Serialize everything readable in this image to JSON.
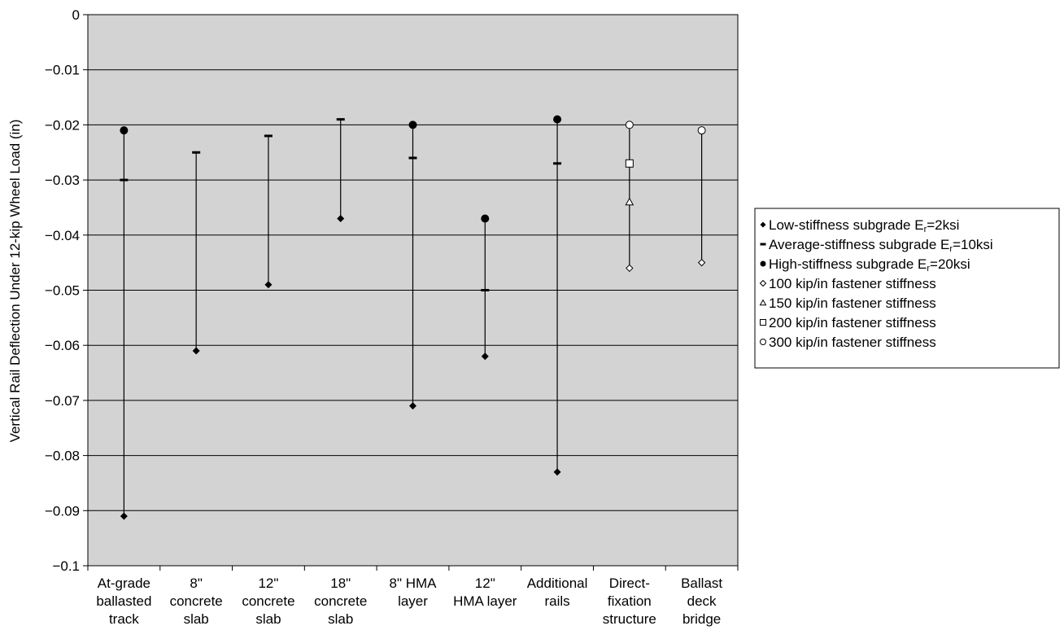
{
  "chart_data": {
    "type": "scatter",
    "title": "",
    "xlabel": "",
    "ylabel": "Vertical Rail Deflection Under 12-kip Wheel Load (in)",
    "ylim": [
      -0.1,
      0
    ],
    "yticks": [
      0,
      -0.01,
      -0.02,
      -0.03,
      -0.04,
      -0.05,
      -0.06,
      -0.07,
      -0.08,
      -0.09,
      -0.1
    ],
    "ytick_labels": [
      "0",
      "−0.01",
      "−0.02",
      "−0.03",
      "−0.04",
      "−0.05",
      "−0.06",
      "−0.07",
      "−0.08",
      "−0.09",
      "−0.1"
    ],
    "grid": true,
    "plot_background": "#d3d3d3",
    "legend_position": "right",
    "categories": [
      [
        "At-grade",
        "ballasted",
        "track"
      ],
      [
        "8\"",
        "concrete",
        "slab"
      ],
      [
        "12\"",
        "concrete",
        "slab"
      ],
      [
        "18\"",
        "concrete",
        "slab"
      ],
      [
        "8\" HMA",
        "layer"
      ],
      [
        "12\"",
        "HMA layer"
      ],
      [
        "Additional",
        "rails"
      ],
      [
        "Direct-",
        "fixation",
        "structure"
      ],
      [
        "Ballast",
        "deck",
        "bridge"
      ]
    ],
    "ranges": [
      {
        "low": -0.091,
        "high": -0.021
      },
      {
        "low": -0.061,
        "high": -0.025
      },
      {
        "low": -0.049,
        "high": -0.022
      },
      {
        "low": -0.037,
        "high": -0.019
      },
      {
        "low": -0.071,
        "high": -0.02
      },
      {
        "low": -0.062,
        "high": -0.037
      },
      {
        "low": -0.083,
        "high": -0.019
      },
      {
        "low": -0.046,
        "high": -0.02
      },
      {
        "low": -0.045,
        "high": -0.021
      }
    ],
    "series": [
      {
        "name": "Low-stiffness subgrade E",
        "sub": "r",
        "suffix": "=2ksi",
        "marker": "diamond-filled",
        "values": [
          -0.091,
          -0.061,
          -0.049,
          -0.037,
          -0.071,
          -0.062,
          -0.083,
          null,
          null
        ]
      },
      {
        "name": "Average-stiffness subgrade E",
        "sub": "r",
        "suffix": "=10ksi",
        "marker": "dash",
        "values": [
          -0.03,
          -0.025,
          -0.022,
          -0.019,
          -0.026,
          -0.05,
          -0.027,
          null,
          null
        ]
      },
      {
        "name": "High-stiffness subgrade E",
        "sub": "r",
        "suffix": "=20ksi",
        "marker": "circle-filled",
        "values": [
          -0.021,
          null,
          null,
          null,
          -0.02,
          -0.037,
          -0.019,
          null,
          null
        ]
      },
      {
        "name": "100 kip/in fastener stiffness",
        "sub": "",
        "suffix": "",
        "marker": "diamond-open",
        "values": [
          null,
          null,
          null,
          null,
          null,
          null,
          null,
          -0.046,
          -0.045
        ]
      },
      {
        "name": "150 kip/in fastener stiffness",
        "sub": "",
        "suffix": "",
        "marker": "triangle-open",
        "values": [
          null,
          null,
          null,
          null,
          null,
          null,
          null,
          -0.034,
          null
        ]
      },
      {
        "name": "200 kip/in fastener stiffness",
        "sub": "",
        "suffix": "",
        "marker": "square-open",
        "values": [
          null,
          null,
          null,
          null,
          null,
          null,
          null,
          -0.027,
          null
        ]
      },
      {
        "name": "300 kip/in fastener stiffness",
        "sub": "",
        "suffix": "",
        "marker": "circle-open",
        "values": [
          null,
          null,
          null,
          null,
          null,
          null,
          null,
          -0.02,
          -0.021
        ]
      }
    ]
  }
}
